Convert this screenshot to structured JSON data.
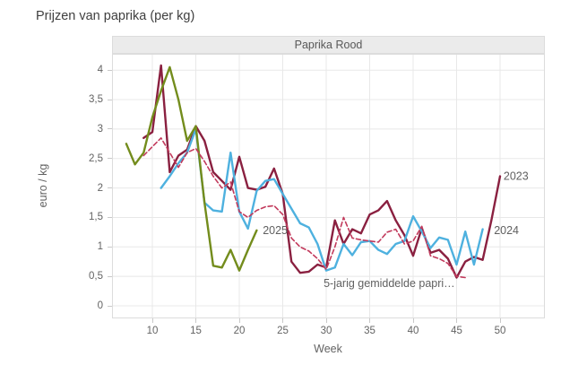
{
  "title": "Prijzen van paprika (per kg)",
  "panel_title": "Paprika Rood",
  "chart_data": {
    "type": "line",
    "title": "Prijzen van paprika (per kg)",
    "panel": "Paprika Rood",
    "xlabel": "Week",
    "ylabel": "euro / kg",
    "x_ticks": [
      10,
      15,
      20,
      25,
      30,
      35,
      40,
      45,
      50
    ],
    "x_tick_labels": [
      "10",
      "15",
      "20",
      "25",
      "30",
      "35",
      "40",
      "45",
      "50"
    ],
    "y_ticks": [
      0,
      0.5,
      1,
      1.5,
      2,
      2.5,
      3,
      3.5,
      4
    ],
    "y_tick_labels": [
      "0",
      "0,5",
      "1",
      "1,5",
      "2",
      "2,5",
      "3",
      "3,5",
      "4"
    ],
    "xlim": [
      5.4,
      55.2
    ],
    "ylim": [
      0,
      4.28
    ],
    "grid": true,
    "legend_position": "inline-labels",
    "colors": {
      "s2023": "#8a2040",
      "s2024": "#4eb1df",
      "s2025": "#738c1c",
      "avg5": "#c23a5c",
      "grid": "#e8e8e8",
      "panel_border": "#dcdcdc",
      "header_bg": "#ebebeb",
      "label_text": "#606060"
    },
    "series": [
      {
        "name": "2023",
        "label": "2023",
        "color": "#8a2040",
        "dash": false,
        "label_pos": [
          50.4,
          2.2
        ],
        "points": [
          [
            9,
            2.85
          ],
          [
            10,
            2.95
          ],
          [
            11,
            4.08
          ],
          [
            12,
            2.27
          ],
          [
            13,
            2.55
          ],
          [
            14,
            2.65
          ],
          [
            15,
            3.05
          ],
          [
            16,
            2.8
          ],
          [
            17,
            2.27
          ],
          [
            18,
            2.12
          ],
          [
            19,
            1.97
          ],
          [
            20,
            2.53
          ],
          [
            21,
            2.0
          ],
          [
            22,
            1.97
          ],
          [
            23,
            2.02
          ],
          [
            24,
            2.33
          ],
          [
            25,
            1.9
          ],
          [
            26,
            0.75
          ],
          [
            27,
            0.56
          ],
          [
            28,
            0.58
          ],
          [
            29,
            0.7
          ],
          [
            30,
            0.65
          ],
          [
            31,
            1.45
          ],
          [
            32,
            1.05
          ],
          [
            33,
            1.3
          ],
          [
            34,
            1.23
          ],
          [
            35,
            1.55
          ],
          [
            36,
            1.62
          ],
          [
            37,
            1.78
          ],
          [
            38,
            1.45
          ],
          [
            39,
            1.2
          ],
          [
            40,
            0.85
          ],
          [
            41,
            1.32
          ],
          [
            42,
            0.9
          ],
          [
            43,
            0.95
          ],
          [
            44,
            0.8
          ],
          [
            45,
            0.48
          ],
          [
            46,
            0.75
          ],
          [
            47,
            0.83
          ],
          [
            48,
            0.78
          ],
          [
            49,
            1.45
          ],
          [
            50,
            2.2
          ]
        ]
      },
      {
        "name": "2024",
        "label": "2024",
        "color": "#4eb1df",
        "dash": false,
        "label_pos": [
          49.3,
          1.28
        ],
        "points": [
          [
            11,
            2.0
          ],
          [
            12,
            2.2
          ],
          [
            13,
            2.42
          ],
          [
            14,
            2.6
          ],
          [
            15,
            3.0
          ],
          [
            16,
            1.75
          ],
          [
            17,
            1.62
          ],
          [
            18,
            1.6
          ],
          [
            19,
            2.6
          ],
          [
            20,
            1.6
          ],
          [
            21,
            1.31
          ],
          [
            22,
            1.95
          ],
          [
            23,
            2.12
          ],
          [
            24,
            2.15
          ],
          [
            25,
            1.9
          ],
          [
            26,
            1.65
          ],
          [
            27,
            1.4
          ],
          [
            28,
            1.33
          ],
          [
            29,
            1.05
          ],
          [
            30,
            0.6
          ],
          [
            31,
            0.65
          ],
          [
            32,
            1.05
          ],
          [
            33,
            0.86
          ],
          [
            34,
            1.08
          ],
          [
            35,
            1.1
          ],
          [
            36,
            0.95
          ],
          [
            37,
            0.88
          ],
          [
            38,
            1.05
          ],
          [
            39,
            1.1
          ],
          [
            40,
            1.52
          ],
          [
            41,
            1.26
          ],
          [
            42,
            0.98
          ],
          [
            43,
            1.16
          ],
          [
            44,
            1.12
          ],
          [
            45,
            0.7
          ],
          [
            46,
            1.26
          ],
          [
            47,
            0.7
          ],
          [
            48,
            1.3
          ]
        ]
      },
      {
        "name": "2025",
        "label": "2025",
        "color": "#738c1c",
        "dash": false,
        "label_pos": [
          22.7,
          1.28
        ],
        "points": [
          [
            7,
            2.75
          ],
          [
            8,
            2.4
          ],
          [
            9,
            2.6
          ],
          [
            10,
            3.2
          ],
          [
            11,
            3.65
          ],
          [
            12,
            4.05
          ],
          [
            13,
            3.5
          ],
          [
            14,
            2.8
          ],
          [
            15,
            3.05
          ],
          [
            16,
            1.75
          ],
          [
            17,
            0.68
          ],
          [
            18,
            0.65
          ],
          [
            19,
            0.95
          ],
          [
            20,
            0.6
          ],
          [
            21,
            0.95
          ],
          [
            22,
            1.28
          ]
        ]
      },
      {
        "name": "5-jarig gemiddelde paprika",
        "label": "5-jarig gemiddelde papri…",
        "color": "#c23a5c",
        "dash": true,
        "label_pos": [
          29.7,
          0.38
        ],
        "points": [
          [
            9,
            2.55
          ],
          [
            10,
            2.7
          ],
          [
            11,
            2.85
          ],
          [
            12,
            2.6
          ],
          [
            13,
            2.35
          ],
          [
            14,
            2.6
          ],
          [
            15,
            2.67
          ],
          [
            16,
            2.45
          ],
          [
            17,
            2.2
          ],
          [
            18,
            2.0
          ],
          [
            19,
            2.1
          ],
          [
            20,
            1.6
          ],
          [
            21,
            1.5
          ],
          [
            22,
            1.62
          ],
          [
            23,
            1.68
          ],
          [
            24,
            1.7
          ],
          [
            25,
            1.55
          ],
          [
            26,
            1.15
          ],
          [
            27,
            1.0
          ],
          [
            28,
            0.93
          ],
          [
            29,
            0.8
          ],
          [
            30,
            0.62
          ],
          [
            31,
            1.0
          ],
          [
            32,
            1.5
          ],
          [
            33,
            1.15
          ],
          [
            34,
            1.12
          ],
          [
            35,
            1.1
          ],
          [
            36,
            1.08
          ],
          [
            37,
            1.25
          ],
          [
            38,
            1.3
          ],
          [
            39,
            1.05
          ],
          [
            40,
            1.1
          ],
          [
            41,
            1.35
          ],
          [
            42,
            0.85
          ],
          [
            43,
            0.8
          ],
          [
            44,
            0.72
          ],
          [
            45,
            0.5
          ],
          [
            46,
            0.48
          ]
        ]
      }
    ]
  }
}
